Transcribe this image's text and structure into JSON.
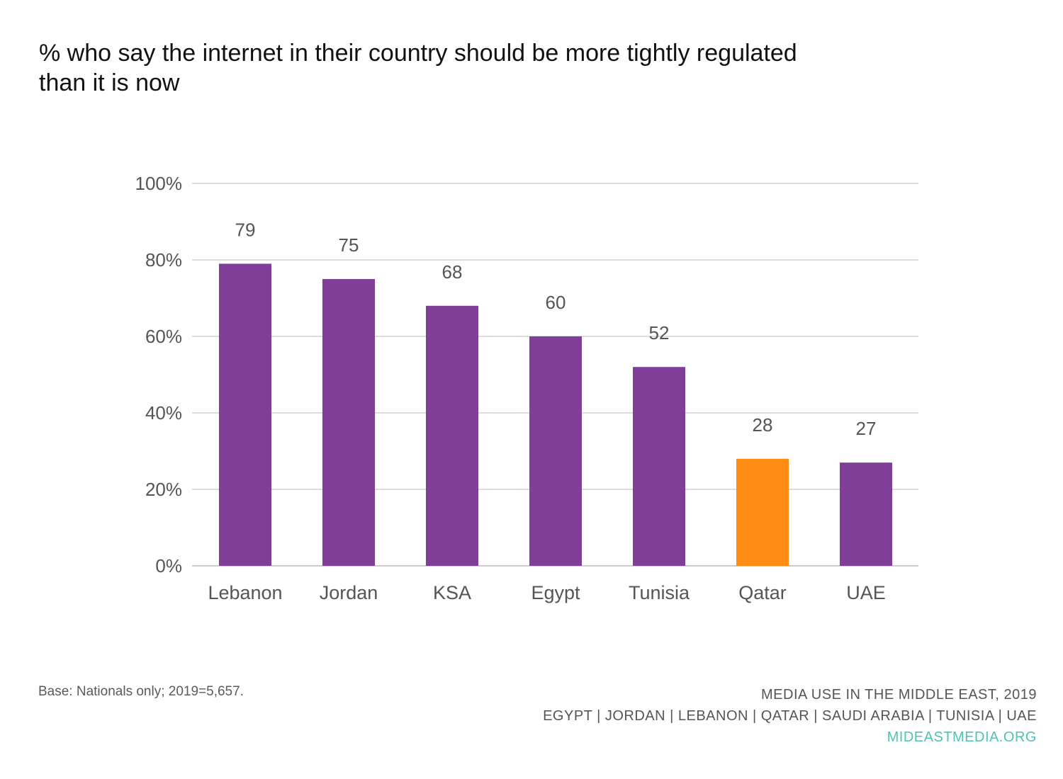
{
  "header": {
    "title_line1": "% who say the internet in their country should be more tightly regulated",
    "title_line2": "than it is now"
  },
  "footer": {
    "base_note": "Base: Nationals only; 2019=5,657.",
    "source_line1": "MEDIA USE IN THE MIDDLE EAST, 2019",
    "source_line2": "EGYPT | JORDAN | LEBANON | QATAR | SAUDI ARABIA | TUNISIA | UAE",
    "source_line3": "MIDEASTMEDIA.ORG"
  },
  "chart_data": {
    "type": "bar",
    "title": "% who say the internet in their country should be more tightly regulated than it is now",
    "categories": [
      "Lebanon",
      "Jordan",
      "KSA",
      "Egypt",
      "Tunisia",
      "Qatar",
      "UAE"
    ],
    "values": [
      79,
      75,
      68,
      60,
      52,
      28,
      27
    ],
    "data_labels": [
      "79",
      "75",
      "68",
      "60",
      "52",
      "28",
      "27"
    ],
    "bar_colors": [
      "#7f3f98",
      "#7f3f98",
      "#7f3f98",
      "#7f3f98",
      "#7f3f98",
      "#ff8c14",
      "#7f3f98"
    ],
    "ylim": [
      0,
      100
    ],
    "yticks": [
      0,
      20,
      40,
      60,
      80,
      100
    ],
    "ytick_labels": [
      "0%",
      "20%",
      "40%",
      "60%",
      "80%",
      "100%"
    ],
    "grid": true,
    "legend": "none",
    "xlabel": "",
    "ylabel": ""
  },
  "colors": {
    "bar_primary": "#7f3f98",
    "bar_highlight": "#ff8c14",
    "gridline": "#dddddd",
    "axis_text": "#555555",
    "site_accent": "#4fc3b5"
  }
}
